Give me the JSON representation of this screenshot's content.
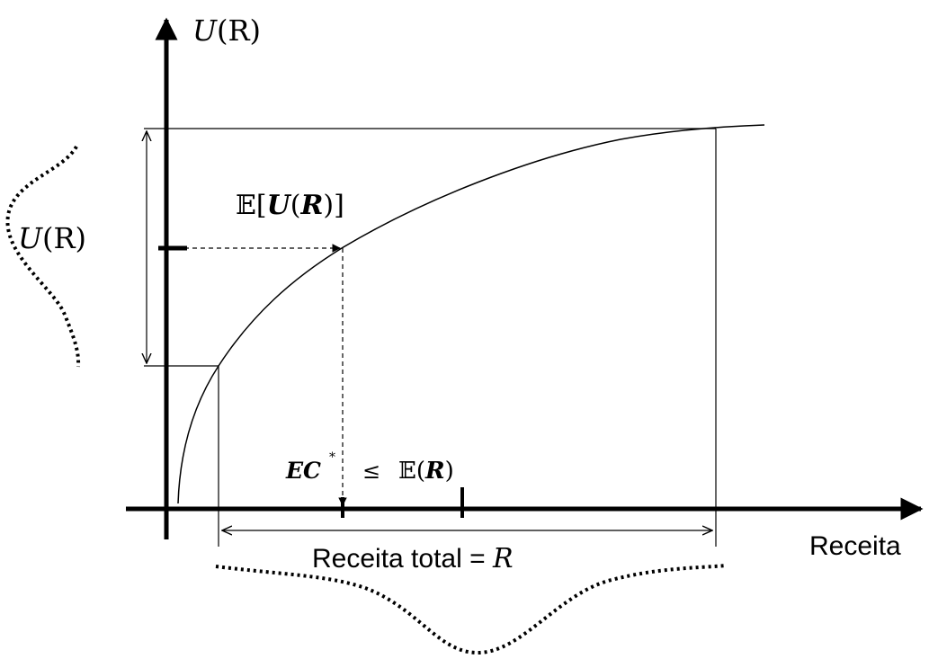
{
  "labels": {
    "y_axis_letter": "U",
    "y_axis_arg": "(R)",
    "x_axis": "Receita",
    "left_dist_letter": "U",
    "left_dist_arg": "(R)",
    "expected_utility": {
      "bb": "𝔼",
      "open": "[",
      "u": "U",
      "lp": "(",
      "r": "R",
      "rp": ")",
      "close": "]"
    },
    "ce": {
      "main": "EC",
      "star": "*"
    },
    "leq": "≤",
    "expected_revenue": {
      "bb": "𝔼",
      "lp": "(",
      "r": "R",
      "rp": ")"
    },
    "total_revenue": {
      "text": "Receita total = ",
      "var": "R"
    }
  },
  "colors": {
    "ink": "#000000",
    "background": "#ffffff"
  }
}
